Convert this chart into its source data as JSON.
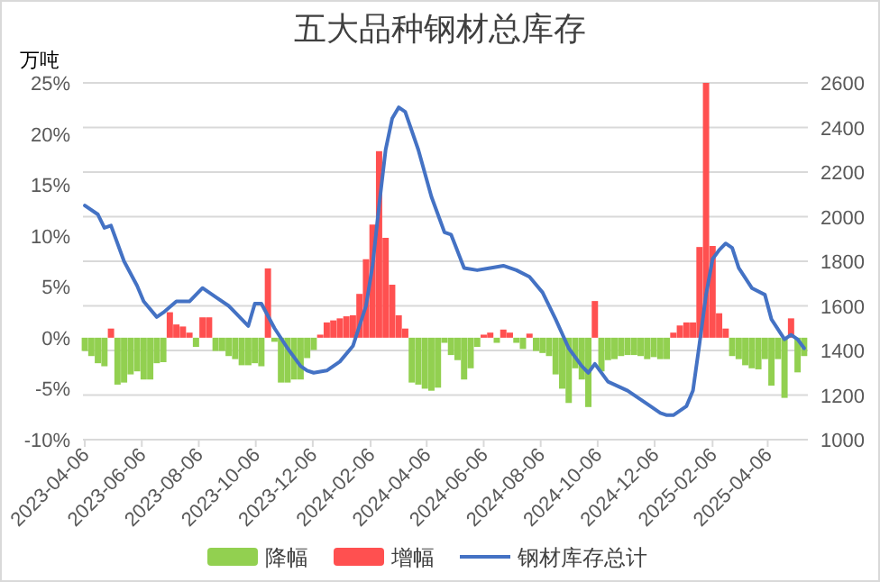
{
  "chart_data": {
    "type": "bar",
    "title": "五大品种钢材总库存",
    "ylabel": "万吨",
    "x": [
      "2023-04-06",
      "2023-04-13",
      "2023-04-20",
      "2023-04-27",
      "2023-05-04",
      "2023-05-11",
      "2023-05-18",
      "2023-05-25",
      "2023-06-01",
      "2023-06-08",
      "2023-06-15",
      "2023-06-22",
      "2023-06-29",
      "2023-07-06",
      "2023-07-13",
      "2023-07-20",
      "2023-07-27",
      "2023-08-03",
      "2023-08-10",
      "2023-08-17",
      "2023-08-24",
      "2023-08-31",
      "2023-09-07",
      "2023-09-14",
      "2023-09-21",
      "2023-09-28",
      "2023-10-05",
      "2023-10-12",
      "2023-10-19",
      "2023-10-26",
      "2023-11-02",
      "2023-11-09",
      "2023-11-16",
      "2023-11-23",
      "2023-11-30",
      "2023-12-07",
      "2023-12-14",
      "2023-12-21",
      "2023-12-28",
      "2024-01-04",
      "2024-01-11",
      "2024-01-18",
      "2024-01-25",
      "2024-02-01",
      "2024-02-08",
      "2024-02-15",
      "2024-02-22",
      "2024-02-29",
      "2024-03-07",
      "2024-03-14",
      "2024-03-21",
      "2024-03-28",
      "2024-04-04",
      "2024-04-11",
      "2024-04-18",
      "2024-04-25",
      "2024-05-02",
      "2024-05-09",
      "2024-05-16",
      "2024-05-23",
      "2024-05-30",
      "2024-06-06",
      "2024-06-13",
      "2024-06-20",
      "2024-06-27",
      "2024-07-04",
      "2024-07-11",
      "2024-07-18",
      "2024-07-25",
      "2024-08-01",
      "2024-08-08",
      "2024-08-15",
      "2024-08-22",
      "2024-08-29",
      "2024-09-05",
      "2024-09-12",
      "2024-09-19",
      "2024-09-26",
      "2024-10-03",
      "2024-10-10",
      "2024-10-17",
      "2024-10-24",
      "2024-10-31",
      "2024-11-07",
      "2024-11-14",
      "2024-11-21",
      "2024-11-28",
      "2024-12-05",
      "2024-12-12",
      "2024-12-19",
      "2024-12-26",
      "2025-01-02",
      "2025-01-09",
      "2025-01-16",
      "2025-01-23",
      "2025-01-30",
      "2025-02-06",
      "2025-02-13",
      "2025-02-20",
      "2025-02-27",
      "2025-03-06",
      "2025-03-13",
      "2025-03-20",
      "2025-03-27",
      "2025-04-03",
      "2025-04-10",
      "2025-04-17",
      "2025-04-24",
      "2025-05-01",
      "2025-05-08",
      "2025-05-15"
    ],
    "series": [
      {
        "name": "降幅",
        "color": "#92d050",
        "values": [
          -1.3,
          -1.8,
          -2.5,
          -2.8,
          null,
          -4.6,
          -4.4,
          -3.6,
          -3.3,
          -4.1,
          -4.1,
          -2.5,
          -2.4,
          null,
          null,
          null,
          null,
          -0.9,
          null,
          null,
          -1.3,
          -1.3,
          -1.8,
          -2.1,
          -2.7,
          -2.7,
          -2.5,
          -2.8,
          null,
          -0.4,
          -4.4,
          -4.4,
          -4.1,
          -4.1,
          -2.0,
          -1.2,
          null,
          null,
          null,
          null,
          null,
          null,
          null,
          null,
          null,
          null,
          null,
          null,
          null,
          null,
          -4.4,
          -4.6,
          -5.0,
          -5.2,
          -4.9,
          -0.5,
          -1.7,
          -2.2,
          -4.1,
          -3.0,
          -0.9,
          null,
          null,
          -0.5,
          null,
          null,
          -0.5,
          -1.1,
          null,
          -1.3,
          -1.5,
          -1.8,
          -3.6,
          -5.0,
          -6.4,
          -3.0,
          -4.1,
          -6.8,
          null,
          -3.3,
          -2.2,
          -2.1,
          -1.8,
          -1.7,
          -1.7,
          -1.8,
          -2.1,
          -1.9,
          -2.1,
          -2.1,
          null,
          null,
          null,
          null,
          null,
          null,
          null,
          null,
          null,
          -1.8,
          -2.1,
          -2.7,
          -3.0,
          -3.1,
          -2.1,
          -4.7,
          -2.1,
          -5.9,
          null,
          -3.4,
          -1.8
        ]
      },
      {
        "name": "增幅",
        "color": "#ff5050",
        "values": [
          null,
          null,
          null,
          null,
          0.9,
          null,
          null,
          null,
          null,
          null,
          null,
          null,
          null,
          2.5,
          1.3,
          1.1,
          0.5,
          null,
          2.0,
          2.0,
          null,
          null,
          null,
          null,
          null,
          null,
          null,
          null,
          6.8,
          null,
          null,
          null,
          null,
          null,
          null,
          null,
          0.3,
          1.5,
          1.7,
          1.9,
          2.1,
          2.2,
          4.3,
          7.7,
          11.1,
          18.3,
          9.8,
          5.2,
          2.2,
          0.9,
          null,
          null,
          null,
          null,
          null,
          null,
          null,
          null,
          null,
          null,
          null,
          0.3,
          0.5,
          null,
          0.8,
          0.5,
          null,
          null,
          0.4,
          null,
          null,
          null,
          null,
          null,
          null,
          null,
          null,
          null,
          3.6,
          null,
          null,
          null,
          null,
          null,
          null,
          null,
          null,
          null,
          null,
          null,
          0.5,
          1.2,
          1.5,
          1.5,
          8.9,
          25,
          9.0,
          2.4,
          0.9,
          null,
          null,
          null,
          null,
          null,
          null,
          null,
          null,
          null,
          1.9,
          null,
          null
        ]
      },
      {
        "name": "钢材库存总计",
        "type": "line",
        "axis": "y2",
        "color": "#4472c4",
        "x": [
          "2023-04-06",
          "2023-04-20",
          "2023-04-27",
          "2023-05-04",
          "2023-05-18",
          "2023-06-01",
          "2023-06-08",
          "2023-06-22",
          "2023-06-29",
          "2023-07-13",
          "2023-07-27",
          "2023-08-10",
          "2023-08-24",
          "2023-09-07",
          "2023-09-21",
          "2023-09-28",
          "2023-10-05",
          "2023-10-12",
          "2023-10-26",
          "2023-11-09",
          "2023-11-23",
          "2023-11-30",
          "2023-12-07",
          "2023-12-21",
          "2024-01-04",
          "2024-01-18",
          "2024-02-01",
          "2024-02-08",
          "2024-02-15",
          "2024-02-22",
          "2024-02-29",
          "2024-03-07",
          "2024-03-14",
          "2024-03-28",
          "2024-04-11",
          "2024-04-25",
          "2024-05-02",
          "2024-05-16",
          "2024-05-30",
          "2024-06-13",
          "2024-06-27",
          "2024-07-11",
          "2024-07-25",
          "2024-08-08",
          "2024-08-22",
          "2024-09-05",
          "2024-09-19",
          "2024-09-26",
          "2024-10-03",
          "2024-10-17",
          "2024-11-07",
          "2024-11-28",
          "2024-12-12",
          "2024-12-19",
          "2024-12-26",
          "2025-01-09",
          "2025-01-16",
          "2025-01-23",
          "2025-01-30",
          "2025-02-06",
          "2025-02-13",
          "2025-02-20",
          "2025-02-27",
          "2025-03-06",
          "2025-03-20",
          "2025-04-03",
          "2025-04-10",
          "2025-04-24",
          "2025-05-01",
          "2025-05-08",
          "2025-05-15"
        ],
        "values": [
          2050,
          2010,
          1950,
          1960,
          1800,
          1690,
          1620,
          1550,
          1570,
          1620,
          1620,
          1680,
          1640,
          1600,
          1540,
          1510,
          1610,
          1610,
          1500,
          1410,
          1330,
          1310,
          1300,
          1310,
          1350,
          1420,
          1600,
          1780,
          2050,
          2300,
          2440,
          2490,
          2470,
          2300,
          2090,
          1930,
          1920,
          1770,
          1760,
          1770,
          1780,
          1760,
          1730,
          1660,
          1540,
          1410,
          1330,
          1300,
          1340,
          1260,
          1220,
          1160,
          1120,
          1110,
          1110,
          1150,
          1220,
          1430,
          1650,
          1810,
          1850,
          1880,
          1860,
          1770,
          1680,
          1650,
          1540,
          1450,
          1470,
          1450,
          1410
        ]
      }
    ],
    "xlim": [
      "2023-04-04",
      "2025-05-19"
    ],
    "xticks": [
      "2023-04-06",
      "2023-06-06",
      "2023-08-06",
      "2023-10-06",
      "2023-12-06",
      "2024-02-06",
      "2024-04-06",
      "2024-06-06",
      "2024-08-06",
      "2024-10-06",
      "2024-12-06",
      "2025-02-06",
      "2025-04-06"
    ],
    "ylim": [
      -10,
      25
    ],
    "yticks": [
      {
        "value": -10,
        "label": "-10%"
      },
      {
        "value": -5,
        "label": "-5%"
      },
      {
        "value": 0,
        "label": "0%"
      },
      {
        "value": 5,
        "label": "5%"
      },
      {
        "value": 10,
        "label": "10%"
      },
      {
        "value": 15,
        "label": "15%"
      },
      {
        "value": 20,
        "label": "20%"
      },
      {
        "value": 25,
        "label": "25%"
      }
    ],
    "y2lim": [
      1000,
      2600
    ],
    "y2ticks": [
      1000,
      1200,
      1400,
      1600,
      1800,
      2000,
      2200,
      2400,
      2600
    ],
    "grid": "y",
    "legend": "bottom",
    "marker": "none",
    "line_style": "solid"
  }
}
